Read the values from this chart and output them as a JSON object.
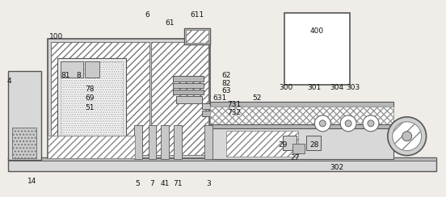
{
  "bg_color": "#f0ede8",
  "line_color": "#555555",
  "fig_width": 5.52,
  "fig_height": 2.44
}
